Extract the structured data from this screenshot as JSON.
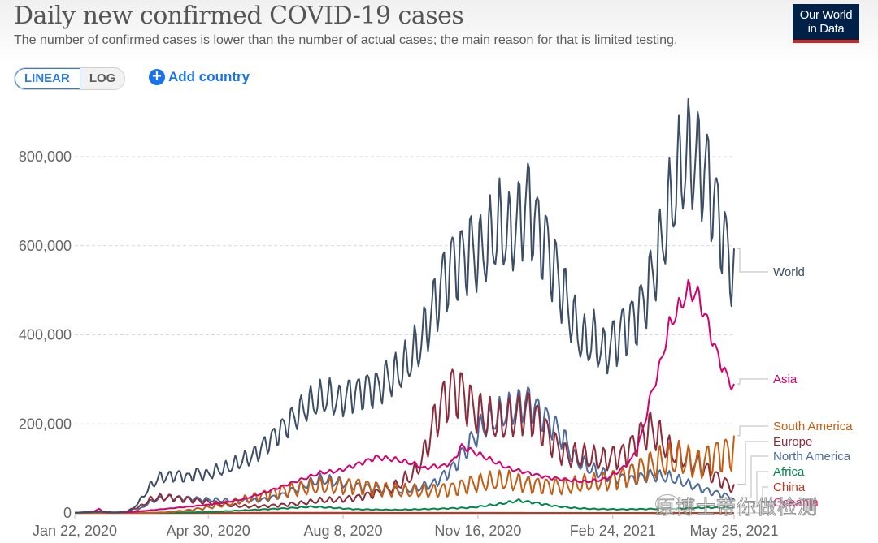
{
  "header": {
    "title": "Daily new confirmed COVID-19 cases",
    "subtitle": "The number of confirmed cases is lower than the number of actual cases; the main reason for that is limited testing.",
    "logo_line1": "Our World",
    "logo_line2": "in Data"
  },
  "controls": {
    "scale_options": [
      "LINEAR",
      "LOG"
    ],
    "scale_selected": "LINEAR",
    "add_country_label": "Add country",
    "add_icon": "plus-circle-icon"
  },
  "watermark": {
    "text": "原博士带你做检测",
    "icon": "wechat-icon"
  },
  "chart_data": {
    "type": "line",
    "title": "Daily new confirmed COVID-19 cases",
    "xlabel": "",
    "ylabel": "",
    "x_unit": "days since Jan 22, 2020",
    "xlim": [
      0,
      489
    ],
    "ylim": [
      0,
      800000
    ],
    "y_ticks": [
      0,
      200000,
      400000,
      600000,
      800000
    ],
    "y_tick_labels": [
      "0",
      "200,000",
      "400,000",
      "600,000",
      "800,000"
    ],
    "x_ticks": [
      0,
      99,
      199,
      299,
      399,
      489
    ],
    "x_tick_labels": [
      "Jan 22, 2020",
      "Apr 30, 2020",
      "Aug 8, 2020",
      "Nov 16, 2020",
      "Feb 24, 2021",
      "May 25, 2021"
    ],
    "grid": "horizontal-dashed",
    "legend_placement": "right (line-end labels)",
    "series": [
      {
        "name": "World",
        "color": "#3c4e66",
        "points": [
          [
            0,
            500
          ],
          [
            14,
            2000
          ],
          [
            21,
            3000
          ],
          [
            28,
            1000
          ],
          [
            35,
            2000
          ],
          [
            42,
            6000
          ],
          [
            49,
            30000
          ],
          [
            56,
            60000
          ],
          [
            63,
            80000
          ],
          [
            70,
            82000
          ],
          [
            77,
            85000
          ],
          [
            84,
            80000
          ],
          [
            91,
            90000
          ],
          [
            98,
            85000
          ],
          [
            105,
            95000
          ],
          [
            112,
            100000
          ],
          [
            119,
            110000
          ],
          [
            126,
            120000
          ],
          [
            133,
            130000
          ],
          [
            140,
            150000
          ],
          [
            147,
            170000
          ],
          [
            154,
            190000
          ],
          [
            161,
            210000
          ],
          [
            168,
            230000
          ],
          [
            175,
            245000
          ],
          [
            182,
            255000
          ],
          [
            189,
            260000
          ],
          [
            196,
            250000
          ],
          [
            203,
            265000
          ],
          [
            210,
            270000
          ],
          [
            217,
            280000
          ],
          [
            224,
            280000
          ],
          [
            231,
            300000
          ],
          [
            238,
            310000
          ],
          [
            245,
            330000
          ],
          [
            252,
            360000
          ],
          [
            259,
            400000
          ],
          [
            266,
            460000
          ],
          [
            273,
            520000
          ],
          [
            280,
            560000
          ],
          [
            287,
            570000
          ],
          [
            294,
            590000
          ],
          [
            301,
            580000
          ],
          [
            308,
            610000
          ],
          [
            315,
            640000
          ],
          [
            322,
            620000
          ],
          [
            329,
            650000
          ],
          [
            336,
            700000
          ],
          [
            343,
            640000
          ],
          [
            350,
            600000
          ],
          [
            357,
            540000
          ],
          [
            364,
            480000
          ],
          [
            371,
            420000
          ],
          [
            378,
            380000
          ],
          [
            385,
            390000
          ],
          [
            392,
            360000
          ],
          [
            399,
            380000
          ],
          [
            406,
            410000
          ],
          [
            413,
            430000
          ],
          [
            420,
            460000
          ],
          [
            427,
            520000
          ],
          [
            434,
            590000
          ],
          [
            441,
            680000
          ],
          [
            448,
            760000
          ],
          [
            455,
            800000
          ],
          [
            462,
            790000
          ],
          [
            469,
            760000
          ],
          [
            476,
            680000
          ],
          [
            483,
            600000
          ],
          [
            489,
            530000
          ]
        ],
        "weekly_amplitude": 0.14
      },
      {
        "name": "Asia",
        "color": "#d6006e",
        "points": [
          [
            0,
            500
          ],
          [
            14,
            2500
          ],
          [
            18,
            10000
          ],
          [
            21,
            2000
          ],
          [
            28,
            1000
          ],
          [
            42,
            2000
          ],
          [
            56,
            6000
          ],
          [
            63,
            8000
          ],
          [
            70,
            10000
          ],
          [
            84,
            14000
          ],
          [
            98,
            18000
          ],
          [
            112,
            24000
          ],
          [
            126,
            32000
          ],
          [
            140,
            45000
          ],
          [
            154,
            60000
          ],
          [
            168,
            75000
          ],
          [
            182,
            90000
          ],
          [
            196,
            95000
          ],
          [
            210,
            110000
          ],
          [
            224,
            125000
          ],
          [
            238,
            120000
          ],
          [
            252,
            110000
          ],
          [
            259,
            100000
          ],
          [
            266,
            105000
          ],
          [
            273,
            105000
          ],
          [
            280,
            115000
          ],
          [
            287,
            150000
          ],
          [
            294,
            140000
          ],
          [
            308,
            120000
          ],
          [
            322,
            100000
          ],
          [
            336,
            90000
          ],
          [
            350,
            80000
          ],
          [
            364,
            75000
          ],
          [
            378,
            70000
          ],
          [
            392,
            75000
          ],
          [
            399,
            85000
          ],
          [
            406,
            100000
          ],
          [
            413,
            120000
          ],
          [
            420,
            170000
          ],
          [
            427,
            260000
          ],
          [
            434,
            330000
          ],
          [
            441,
            420000
          ],
          [
            448,
            460000
          ],
          [
            455,
            500000
          ],
          [
            462,
            490000
          ],
          [
            469,
            430000
          ],
          [
            476,
            360000
          ],
          [
            483,
            310000
          ],
          [
            489,
            280000
          ]
        ],
        "weekly_amplitude": 0.04
      },
      {
        "name": "South America",
        "color": "#c15e14",
        "points": [
          [
            0,
            0
          ],
          [
            56,
            0
          ],
          [
            70,
            2000
          ],
          [
            84,
            6000
          ],
          [
            98,
            12000
          ],
          [
            112,
            20000
          ],
          [
            126,
            30000
          ],
          [
            140,
            40000
          ],
          [
            154,
            50000
          ],
          [
            168,
            55000
          ],
          [
            182,
            60000
          ],
          [
            196,
            60000
          ],
          [
            210,
            62000
          ],
          [
            224,
            55000
          ],
          [
            238,
            50000
          ],
          [
            252,
            48000
          ],
          [
            266,
            50000
          ],
          [
            280,
            55000
          ],
          [
            294,
            65000
          ],
          [
            308,
            70000
          ],
          [
            322,
            72000
          ],
          [
            336,
            65000
          ],
          [
            350,
            62000
          ],
          [
            364,
            60000
          ],
          [
            378,
            65000
          ],
          [
            392,
            70000
          ],
          [
            406,
            80000
          ],
          [
            420,
            100000
          ],
          [
            434,
            115000
          ],
          [
            448,
            120000
          ],
          [
            462,
            110000
          ],
          [
            476,
            130000
          ],
          [
            489,
            140000
          ]
        ],
        "weekly_amplitude": 0.28
      },
      {
        "name": "Europe",
        "color": "#8c2b3a",
        "points": [
          [
            0,
            0
          ],
          [
            35,
            1000
          ],
          [
            49,
            15000
          ],
          [
            56,
            30000
          ],
          [
            63,
            35000
          ],
          [
            70,
            35000
          ],
          [
            77,
            32000
          ],
          [
            84,
            30000
          ],
          [
            98,
            25000
          ],
          [
            112,
            18000
          ],
          [
            126,
            15000
          ],
          [
            140,
            15000
          ],
          [
            154,
            18000
          ],
          [
            168,
            22000
          ],
          [
            182,
            28000
          ],
          [
            196,
            30000
          ],
          [
            210,
            35000
          ],
          [
            224,
            45000
          ],
          [
            238,
            60000
          ],
          [
            252,
            90000
          ],
          [
            259,
            130000
          ],
          [
            266,
            200000
          ],
          [
            273,
            250000
          ],
          [
            280,
            280000
          ],
          [
            287,
            270000
          ],
          [
            294,
            240000
          ],
          [
            301,
            220000
          ],
          [
            308,
            210000
          ],
          [
            315,
            200000
          ],
          [
            322,
            210000
          ],
          [
            329,
            220000
          ],
          [
            336,
            230000
          ],
          [
            343,
            210000
          ],
          [
            350,
            180000
          ],
          [
            357,
            150000
          ],
          [
            364,
            130000
          ],
          [
            378,
            125000
          ],
          [
            392,
            120000
          ],
          [
            406,
            130000
          ],
          [
            413,
            150000
          ],
          [
            420,
            175000
          ],
          [
            427,
            190000
          ],
          [
            434,
            170000
          ],
          [
            441,
            140000
          ],
          [
            448,
            130000
          ],
          [
            462,
            110000
          ],
          [
            476,
            80000
          ],
          [
            489,
            55000
          ]
        ],
        "weekly_amplitude": 0.2
      },
      {
        "name": "North America",
        "color": "#4c6a9c",
        "points": [
          [
            0,
            0
          ],
          [
            42,
            1000
          ],
          [
            49,
            10000
          ],
          [
            56,
            25000
          ],
          [
            63,
            32000
          ],
          [
            70,
            35000
          ],
          [
            84,
            33000
          ],
          [
            98,
            30000
          ],
          [
            112,
            28000
          ],
          [
            126,
            27000
          ],
          [
            140,
            30000
          ],
          [
            154,
            40000
          ],
          [
            168,
            60000
          ],
          [
            182,
            75000
          ],
          [
            196,
            70000
          ],
          [
            210,
            60000
          ],
          [
            224,
            55000
          ],
          [
            238,
            50000
          ],
          [
            252,
            55000
          ],
          [
            266,
            65000
          ],
          [
            280,
            100000
          ],
          [
            294,
            160000
          ],
          [
            301,
            190000
          ],
          [
            315,
            220000
          ],
          [
            329,
            240000
          ],
          [
            336,
            250000
          ],
          [
            343,
            230000
          ],
          [
            357,
            190000
          ],
          [
            364,
            160000
          ],
          [
            371,
            120000
          ],
          [
            385,
            95000
          ],
          [
            399,
            80000
          ],
          [
            413,
            75000
          ],
          [
            427,
            85000
          ],
          [
            441,
            80000
          ],
          [
            455,
            65000
          ],
          [
            469,
            50000
          ],
          [
            482,
            40000
          ],
          [
            489,
            30000
          ]
        ],
        "weekly_amplitude": 0.15
      },
      {
        "name": "Africa",
        "color": "#00874a",
        "points": [
          [
            0,
            0
          ],
          [
            70,
            500
          ],
          [
            98,
            2000
          ],
          [
            126,
            6000
          ],
          [
            154,
            10000
          ],
          [
            175,
            14000
          ],
          [
            189,
            12000
          ],
          [
            210,
            8000
          ],
          [
            238,
            7000
          ],
          [
            266,
            9000
          ],
          [
            294,
            12000
          ],
          [
            315,
            20000
          ],
          [
            329,
            28000
          ],
          [
            343,
            22000
          ],
          [
            357,
            15000
          ],
          [
            371,
            11000
          ],
          [
            385,
            9000
          ],
          [
            406,
            8000
          ],
          [
            427,
            9000
          ],
          [
            448,
            10000
          ],
          [
            469,
            12000
          ],
          [
            489,
            12000
          ]
        ],
        "weekly_amplitude": 0.1
      },
      {
        "name": "China",
        "color": "#c0391f",
        "points": [
          [
            0,
            0
          ],
          [
            14,
            2000
          ],
          [
            21,
            3000
          ],
          [
            28,
            1000
          ],
          [
            42,
            100
          ],
          [
            100,
            50
          ],
          [
            200,
            30
          ],
          [
            300,
            20
          ],
          [
            400,
            20
          ],
          [
            489,
            30
          ]
        ],
        "weekly_amplitude": 0
      },
      {
        "name": "Oceania",
        "color": "#e0266e",
        "points": [
          [
            0,
            0
          ],
          [
            60,
            400
          ],
          [
            80,
            100
          ],
          [
            190,
            600
          ],
          [
            210,
            300
          ],
          [
            300,
            100
          ],
          [
            489,
            50
          ]
        ],
        "weekly_amplitude": 0
      }
    ],
    "end_labels": [
      "World",
      "Asia",
      "South America",
      "Europe",
      "North America",
      "Africa",
      "China",
      "Oceania"
    ]
  }
}
